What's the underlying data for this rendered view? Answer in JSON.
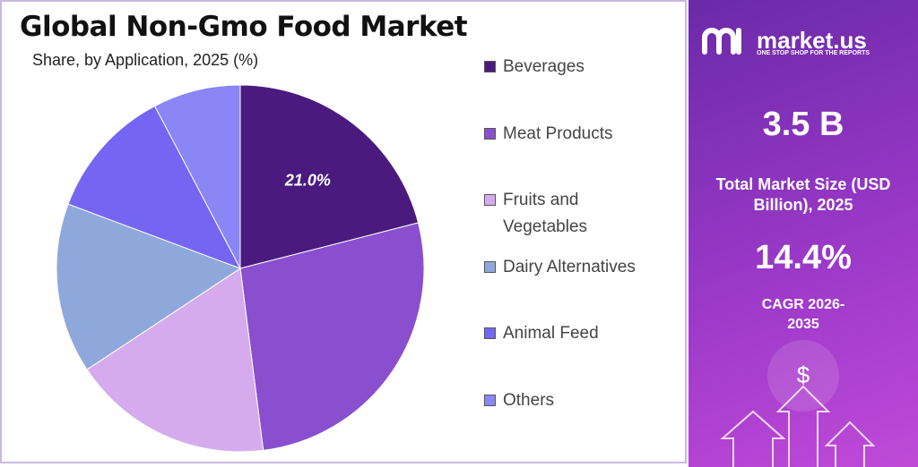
{
  "chart_data": {
    "type": "pie",
    "title": "Global Non-Gmo Food Market",
    "subtitle": "Share, by Application, 2025 (%)",
    "categories": [
      "Beverages",
      "Meat Products",
      "Fruits and Vegetables",
      "Dairy Alternatives",
      "Animal Feed",
      "Others"
    ],
    "values": [
      21.0,
      27.0,
      17.7,
      15.0,
      11.6,
      7.7
    ],
    "value_labels": [
      "21.0%",
      null,
      null,
      null,
      null,
      null
    ],
    "colors": [
      "#4a1a7e",
      "#8a4fcf",
      "#d6abee",
      "#8fa8dc",
      "#7466f2",
      "#8a86f5"
    ]
  },
  "panel": {
    "logo": "market.us",
    "tagline": "ONE STOP SHOP FOR THE REPORTS",
    "market_size": "3.5 B",
    "market_size_label": "Total Market Size (USD Billion), 2025",
    "cagr": "14.4%",
    "cagr_label": "CAGR 2026-2035"
  }
}
